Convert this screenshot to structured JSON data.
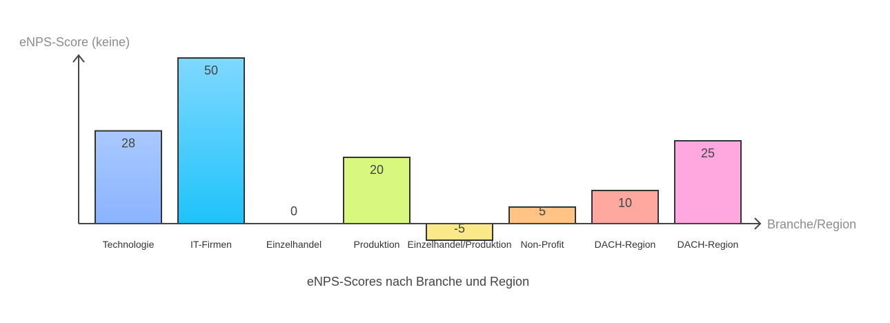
{
  "chart_data": {
    "type": "bar",
    "title": "eNPS-Scores nach Branche und Region",
    "xlabel": "Branche/Region",
    "ylabel": "eNPS-Score (keine)",
    "categories": [
      "Technologie",
      "IT-Firmen",
      "Einzelhandel",
      "Produktion",
      "Einzelhandel/Produktion",
      "Non-Profit",
      "DACH-Region",
      "DACH-Region"
    ],
    "values": [
      28,
      50,
      0,
      20,
      -5,
      5,
      10,
      25
    ],
    "value_labels": [
      "28",
      "50",
      "0",
      "20",
      "-5",
      "5",
      "10",
      "25"
    ],
    "ylim": [
      -5,
      50
    ],
    "grid": false,
    "legend": "none",
    "colors": [
      [
        "#a9c8ff",
        "#8ab4ff"
      ],
      [
        "#7fd8ff",
        "#1ec3fa"
      ],
      [
        "#dddddd",
        "#dddddd"
      ],
      [
        "#d8f77e",
        "#d8f77e"
      ],
      [
        "#fbe989",
        "#fbe989"
      ],
      [
        "#ffc385",
        "#ffc385"
      ],
      [
        "#ffa8a0",
        "#ffa8a0"
      ],
      [
        "#ffa8df",
        "#ffa8df"
      ]
    ]
  }
}
